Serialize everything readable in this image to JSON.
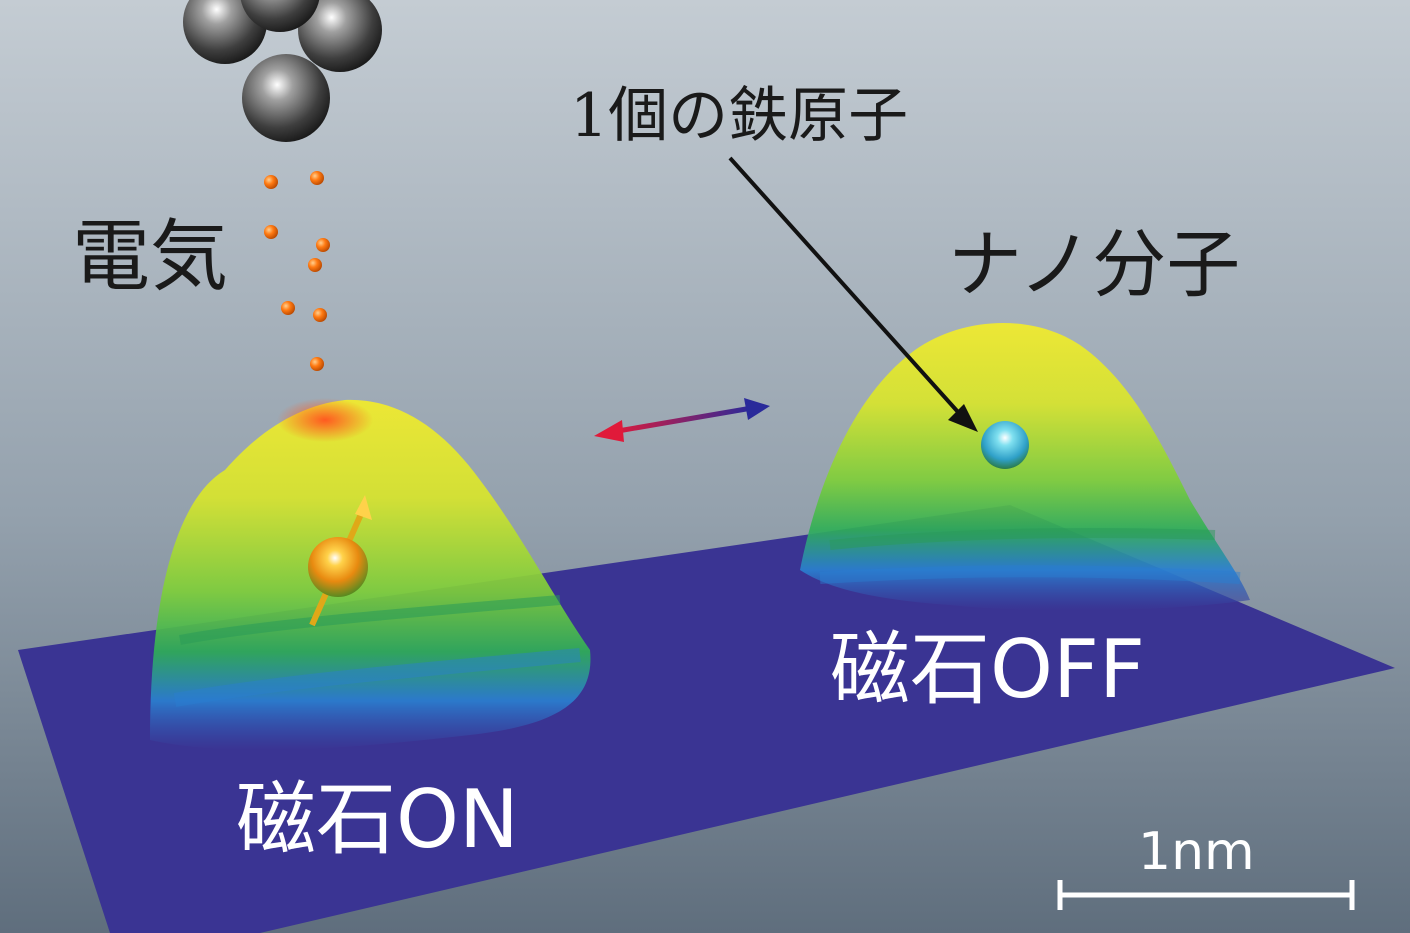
{
  "labels": {
    "electricity": "電気",
    "iron_atom": "1個の鉄原子",
    "nano_molecule": "ナノ分子",
    "magnet_on": "磁石ON",
    "magnet_off": "磁石OFF",
    "scale": "1nm"
  },
  "colors": {
    "background_top": "#c4ccd3",
    "background_bottom": "#5f6e7d",
    "surface": "#3a3493",
    "electron": "#ff7a12",
    "arrow_red": "#e01a3a",
    "arrow_blue": "#2a2a9a"
  }
}
